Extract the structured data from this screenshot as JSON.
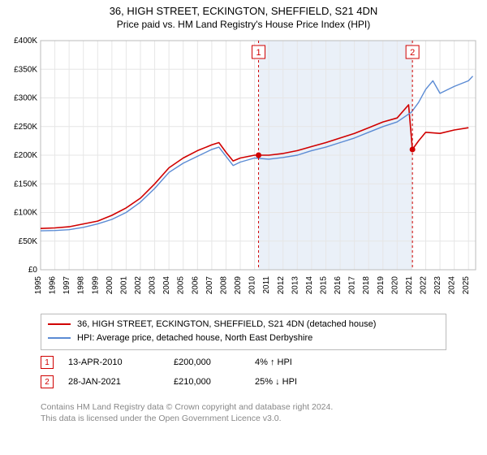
{
  "title": "36, HIGH STREET, ECKINGTON, SHEFFIELD, S21 4DN",
  "subtitle": "Price paid vs. HM Land Registry's House Price Index (HPI)",
  "chart": {
    "type": "line",
    "background_color": "#ffffff",
    "grid_color": "#e6e6e6",
    "plot_border_color": "#bbbbbb",
    "highlight_band": {
      "from": 2010.28,
      "to": 2021.07,
      "fill": "#eaf0f8"
    },
    "xlim": [
      1995,
      2025.5
    ],
    "x_ticks": [
      1995,
      1996,
      1997,
      1998,
      1999,
      2000,
      2001,
      2002,
      2003,
      2004,
      2005,
      2006,
      2007,
      2008,
      2009,
      2010,
      2011,
      2012,
      2013,
      2014,
      2015,
      2016,
      2017,
      2018,
      2019,
      2020,
      2021,
      2022,
      2023,
      2024,
      2025
    ],
    "x_labels": [
      "1995",
      "1996",
      "1997",
      "1998",
      "1999",
      "2000",
      "2001",
      "2002",
      "2003",
      "2004",
      "2005",
      "2006",
      "2007",
      "2008",
      "2009",
      "2010",
      "2011",
      "2012",
      "2013",
      "2014",
      "2015",
      "2016",
      "2017",
      "2018",
      "2019",
      "2020",
      "2021",
      "2022",
      "2023",
      "2024",
      "2025"
    ],
    "ylim": [
      0,
      400000
    ],
    "y_ticks": [
      0,
      50000,
      100000,
      150000,
      200000,
      250000,
      300000,
      350000,
      400000
    ],
    "y_labels": [
      "£0",
      "£50K",
      "£100K",
      "£150K",
      "£200K",
      "£250K",
      "£300K",
      "£350K",
      "£400K"
    ],
    "axis_fontsize": 10,
    "title_fontsize": 13,
    "series": [
      {
        "name": "price_paid",
        "label": "36, HIGH STREET, ECKINGTON, SHEFFIELD, S21 4DN (detached house)",
        "color": "#d00000",
        "width": 1.6,
        "x": [
          1995,
          1996,
          1997,
          1998,
          1999,
          2000,
          2001,
          2002,
          2003,
          2004,
          2005,
          2006,
          2007,
          2007.5,
          2008,
          2008.5,
          2009,
          2010,
          2011,
          2012,
          2013,
          2014,
          2015,
          2016,
          2017,
          2018,
          2019,
          2020,
          2020.8,
          2021.07,
          2021.5,
          2022,
          2023,
          2024,
          2025
        ],
        "y": [
          72000,
          73000,
          75000,
          80000,
          85000,
          95000,
          108000,
          125000,
          150000,
          178000,
          195000,
          208000,
          218000,
          222000,
          205000,
          190000,
          195000,
          200000,
          200000,
          203000,
          208000,
          215000,
          222000,
          230000,
          238000,
          248000,
          258000,
          265000,
          288000,
          210000,
          225000,
          240000,
          238000,
          244000,
          248000
        ]
      },
      {
        "name": "hpi",
        "label": "HPI: Average price, detached house, North East Derbyshire",
        "color": "#5b8bd4",
        "width": 1.4,
        "x": [
          1995,
          1996,
          1997,
          1998,
          1999,
          2000,
          2001,
          2002,
          2003,
          2004,
          2005,
          2006,
          2007,
          2007.5,
          2008,
          2008.5,
          2009,
          2010,
          2011,
          2012,
          2013,
          2014,
          2015,
          2016,
          2017,
          2018,
          2019,
          2020,
          2021,
          2021.5,
          2022,
          2022.5,
          2023,
          2024,
          2025,
          2025.3
        ],
        "y": [
          68000,
          68500,
          70000,
          74000,
          80000,
          88000,
          100000,
          118000,
          142000,
          170000,
          186000,
          198000,
          210000,
          214000,
          198000,
          182000,
          188000,
          195000,
          193000,
          196000,
          200000,
          208000,
          214000,
          222000,
          230000,
          240000,
          250000,
          258000,
          275000,
          292000,
          315000,
          330000,
          308000,
          320000,
          330000,
          338000
        ]
      }
    ],
    "markers": [
      {
        "n": "1",
        "x": 2010.28,
        "y": 200000,
        "color": "#d00000",
        "box_y": -8
      },
      {
        "n": "2",
        "x": 2021.07,
        "y": 210000,
        "color": "#d00000",
        "box_y": -8
      }
    ],
    "marker_box_fontsize": 11
  },
  "legend": [
    {
      "color": "#d00000",
      "label": "36, HIGH STREET, ECKINGTON, SHEFFIELD, S21 4DN (detached house)"
    },
    {
      "color": "#5b8bd4",
      "label": "HPI: Average price, detached house, North East Derbyshire"
    }
  ],
  "events": [
    {
      "n": "1",
      "date": "13-APR-2010",
      "price": "£200,000",
      "delta": "4% ↑ HPI"
    },
    {
      "n": "2",
      "date": "28-JAN-2021",
      "price": "£210,000",
      "delta": "25% ↓ HPI"
    }
  ],
  "footer_line1": "Contains HM Land Registry data © Crown copyright and database right 2024.",
  "footer_line2": "This data is licensed under the Open Government Licence v3.0."
}
